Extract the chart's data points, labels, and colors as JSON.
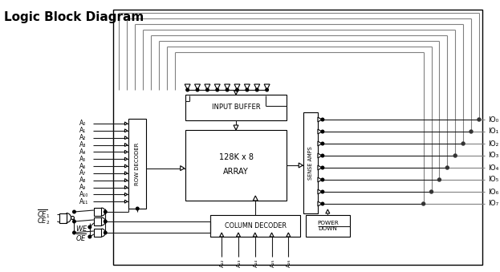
{
  "title": "Logic Block Diagram",
  "bg": "#ffffff",
  "lc": "#1a1a1a",
  "gc": "#808080",
  "lw": 0.8,
  "addr_left": [
    "A₀",
    "A₁",
    "A₂",
    "A₃",
    "A₄",
    "A₅",
    "A₆",
    "A₇",
    "A₈",
    "A₉",
    "A₁₀",
    "A₁₁"
  ],
  "addr_bottom": [
    "A₁₂",
    "A₁₃",
    "A₁₄",
    "A₁₅",
    "A₁₆"
  ],
  "io_labels": [
    "IO₀",
    "IO₁",
    "IO₂",
    "IO₃",
    "IO₄",
    "IO₅",
    "IO₆",
    "IO₇"
  ],
  "input_buffer": "INPUT BUFFER",
  "array_l1": "128K x 8",
  "array_l2": "ARRAY",
  "row_decoder": "ROW DECODER",
  "sense_amps": "SENSE AMPS",
  "col_decoder": "COLUMN DECODER",
  "power_down": "POWER\nDOWN"
}
